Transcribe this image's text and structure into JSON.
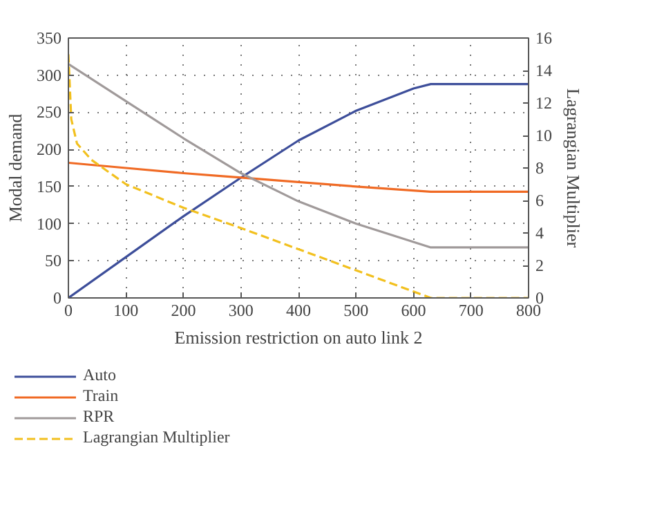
{
  "chart_data": {
    "type": "line",
    "xlabel": "Emission restriction on auto link 2",
    "ylabel": "Modal demand",
    "y2label": "Lagrangian Multiplier",
    "xlim": [
      0,
      800
    ],
    "xticks": [
      0,
      100,
      200,
      300,
      400,
      500,
      600,
      700,
      800
    ],
    "ylim": [
      0,
      350
    ],
    "yticks": [
      0,
      50,
      100,
      150,
      200,
      250,
      300,
      350
    ],
    "y2lim": [
      0,
      16
    ],
    "y2ticks": [
      0,
      2,
      4,
      6,
      8,
      10,
      12,
      14,
      16
    ],
    "grid": true,
    "legend": "bottom",
    "line_style": "solid",
    "marker": "none",
    "series": [
      {
        "name": "Auto",
        "color": "#3d4e9a",
        "x": [
          0,
          100,
          200,
          300,
          400,
          500,
          600,
          630,
          800
        ],
        "values": [
          0,
          55,
          110,
          162,
          212,
          252,
          282,
          288,
          288
        ]
      },
      {
        "name": "Train",
        "color": "#f06a24",
        "x": [
          0,
          100,
          200,
          300,
          400,
          500,
          630,
          800
        ],
        "values": [
          182,
          175,
          168,
          162,
          156,
          150,
          143,
          143
        ]
      },
      {
        "name": "RPR",
        "color": "#a09a9a",
        "x": [
          0,
          100,
          200,
          300,
          400,
          500,
          630,
          800
        ],
        "values": [
          315,
          265,
          215,
          168,
          130,
          100,
          68,
          68
        ]
      },
      {
        "name": "Lagrangian Multiplier",
        "color": "#f2c01e",
        "axis": "y2",
        "line_style": "dashed",
        "x": [
          0,
          5,
          15,
          40,
          100,
          200,
          300,
          400,
          500,
          630,
          800
        ],
        "values": [
          15.0,
          11.0,
          9.5,
          8.5,
          7.0,
          5.55,
          4.3,
          3.0,
          1.7,
          0,
          0
        ]
      }
    ]
  }
}
